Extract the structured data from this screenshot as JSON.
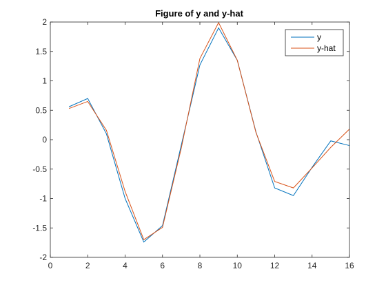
{
  "chart_data": {
    "type": "line",
    "title": "Figure of y and y-hat",
    "xlabel": "",
    "ylabel": "",
    "xlim": [
      0,
      16
    ],
    "ylim": [
      -2,
      2
    ],
    "xticks": [
      "0",
      "2",
      "4",
      "6",
      "8",
      "10",
      "12",
      "14",
      "16"
    ],
    "yticks": [
      "-2",
      "-1.5",
      "-1",
      "-0.5",
      "0",
      "0.5",
      "1",
      "1.5",
      "2"
    ],
    "x": [
      1,
      2,
      3,
      4,
      5,
      6,
      7,
      8,
      9,
      10,
      11,
      12,
      13,
      14,
      15,
      16
    ],
    "series": [
      {
        "name": "y",
        "color": "#0072BD",
        "values": [
          0.56,
          0.7,
          0.1,
          -1.0,
          -1.74,
          -1.46,
          -0.1,
          1.27,
          1.9,
          1.35,
          0.13,
          -0.82,
          -0.95,
          -0.47,
          -0.02,
          -0.1
        ]
      },
      {
        "name": "y-hat",
        "color": "#D95319",
        "values": [
          0.53,
          0.65,
          0.16,
          -0.88,
          -1.7,
          -1.49,
          -0.15,
          1.38,
          1.99,
          1.35,
          0.12,
          -0.71,
          -0.82,
          -0.48,
          -0.13,
          0.18
        ]
      }
    ],
    "grid": false,
    "legend_position": "top-right"
  }
}
